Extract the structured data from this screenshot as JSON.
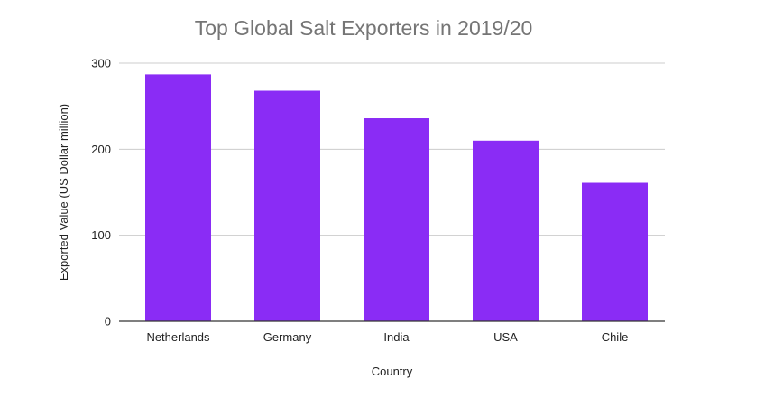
{
  "chart_data": {
    "type": "bar",
    "title": "Top Global Salt Exporters in 2019/20",
    "xlabel": "Country",
    "ylabel": "Exported Value (US Dollar million)",
    "categories": [
      "Netherlands",
      "Germany",
      "India",
      "USA",
      "Chile"
    ],
    "values": [
      287,
      268,
      236,
      210,
      161
    ],
    "ylim": [
      0,
      300
    ],
    "yticks": [
      "0",
      "100",
      "200",
      "300"
    ],
    "grid": true,
    "legend": "none",
    "bar_color": "#8a2cf5",
    "grid_color": "#cccccc",
    "axis_color": "#333333"
  }
}
